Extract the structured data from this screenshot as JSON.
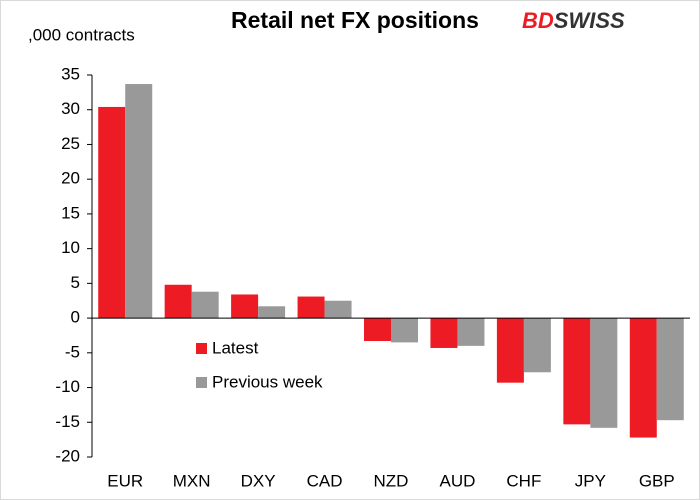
{
  "chart_data": {
    "type": "bar",
    "title": "Retail net FX positions",
    "y_label": ",000 contracts",
    "logo": [
      "BD",
      "SWISS"
    ],
    "categories": [
      "EUR",
      "MXN",
      "DXY",
      "CAD",
      "NZD",
      "AUD",
      "CHF",
      "JPY",
      "GBP"
    ],
    "series": [
      {
        "name": "Latest",
        "color": "#ed1c24",
        "values": [
          30.4,
          4.8,
          3.4,
          3.1,
          -3.3,
          -4.3,
          -9.3,
          -15.3,
          -17.2
        ]
      },
      {
        "name": "Previous week",
        "color": "#999999",
        "values": [
          33.7,
          3.8,
          1.7,
          2.5,
          -3.5,
          -4.0,
          -7.8,
          -15.8,
          -14.7
        ]
      }
    ],
    "ylim": [
      -20,
      35
    ],
    "yticks": [
      -20,
      -15,
      -10,
      -5,
      0,
      5,
      10,
      15,
      20,
      25,
      30,
      35
    ],
    "grid": false
  }
}
